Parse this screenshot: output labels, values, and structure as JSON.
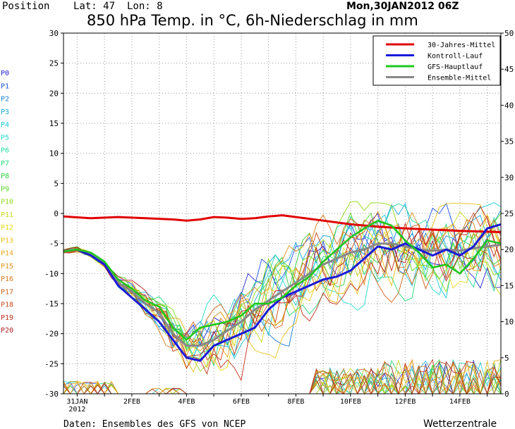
{
  "header": {
    "position_label": "Position",
    "lat_label": "Lat: 47",
    "lon_label": "Lon: 8",
    "date_label": "Mon,30JAN2012 06Z"
  },
  "footer": {
    "source_label": "Daten: Ensembles des GFS von NCEP",
    "brand_label": "Wetterzentrale"
  },
  "colors": {
    "mittel": "#e00000",
    "kontroll": "#1a1ad8",
    "gfs": "#1ec81e",
    "ensemble": "#888888"
  },
  "chart_data": {
    "type": "line",
    "title": "850 hPa Temp. in °C, 6h-Niederschlag in mm",
    "x_ticks": [
      {
        "x": 0.0,
        "label": "31JAN",
        "label2": "2012"
      },
      {
        "x": 2,
        "label": "2FEB"
      },
      {
        "x": 4,
        "label": "4FEB"
      },
      {
        "x": 6,
        "label": "6FEB"
      },
      {
        "x": 8,
        "label": "8FEB"
      },
      {
        "x": 10,
        "label": "10FEB"
      },
      {
        "x": 12,
        "label": "12FEB"
      },
      {
        "x": 14,
        "label": "14FEB"
      }
    ],
    "xlim": [
      -0.5,
      15.5
    ],
    "ylim_left": [
      -30,
      30
    ],
    "ylim_right": [
      0,
      50
    ],
    "y_ticks_left": [
      -30,
      -25,
      -20,
      -15,
      -10,
      -5,
      0,
      5,
      10,
      15,
      20,
      25,
      30
    ],
    "y_ticks_right": [
      0,
      5,
      10,
      15,
      20,
      25,
      30,
      35,
      40,
      45,
      50
    ],
    "grid": true,
    "legend_position": "top-right",
    "legend": [
      {
        "label": "30-Jahres-Mittel",
        "color": "#e00000"
      },
      {
        "label": "Kontroll-Lauf",
        "color": "#1a1ad8"
      },
      {
        "label": "GFS-Hauptlauf",
        "color": "#1ec81e"
      },
      {
        "label": "Ensemble-Mittel",
        "color": "#888888"
      }
    ],
    "members": [
      {
        "name": "P0",
        "color": "#2020d0"
      },
      {
        "name": "P1",
        "color": "#1a50e0"
      },
      {
        "name": "P2",
        "color": "#1a7ee0"
      },
      {
        "name": "P3",
        "color": "#18a8e0"
      },
      {
        "name": "P4",
        "color": "#18c8d8"
      },
      {
        "name": "P5",
        "color": "#20d8c8"
      },
      {
        "name": "P6",
        "color": "#20d8a0"
      },
      {
        "name": "P7",
        "color": "#20d878"
      },
      {
        "name": "P8",
        "color": "#30d040"
      },
      {
        "name": "P9",
        "color": "#58d820"
      },
      {
        "name": "P10",
        "color": "#90d818"
      },
      {
        "name": "P11",
        "color": "#c8d818"
      },
      {
        "name": "P12",
        "color": "#e8d818"
      },
      {
        "name": "P13",
        "color": "#e8c018"
      },
      {
        "name": "P14",
        "color": "#e8a818"
      },
      {
        "name": "P15",
        "color": "#e09018"
      },
      {
        "name": "P16",
        "color": "#d87818"
      },
      {
        "name": "P17",
        "color": "#d06018"
      },
      {
        "name": "P18",
        "color": "#c84818"
      },
      {
        "name": "P19",
        "color": "#c03018"
      },
      {
        "name": "P20",
        "color": "#b02020"
      }
    ],
    "series": [
      {
        "name": "30-Jahres-Mittel",
        "color": "#e00000",
        "x": [
          -0.5,
          0.5,
          1.5,
          2.5,
          3.5,
          4.0,
          4.5,
          5.0,
          5.5,
          6.0,
          6.5,
          7.0,
          7.5,
          8.0,
          9.0,
          10.0,
          11.0,
          12.0,
          13.0,
          14.0,
          15.5
        ],
        "y": [
          -0.5,
          -0.8,
          -0.6,
          -0.8,
          -1.0,
          -1.2,
          -1.0,
          -0.6,
          -0.7,
          -0.9,
          -0.8,
          -0.5,
          -0.3,
          -0.6,
          -1.2,
          -1.8,
          -2.2,
          -2.5,
          -2.7,
          -2.9,
          -3.1
        ]
      },
      {
        "name": "Kontroll-Lauf",
        "color": "#1a1ad8",
        "x": [
          -0.5,
          0.0,
          0.5,
          1.0,
          1.5,
          2.0,
          2.5,
          3.0,
          3.5,
          4.0,
          4.5,
          5.0,
          5.5,
          6.0,
          6.5,
          7.0,
          7.5,
          8.0,
          8.5,
          9.0,
          9.5,
          10.0,
          10.5,
          11.0,
          11.5,
          12.0,
          12.5,
          13.0,
          13.5,
          14.0,
          14.5,
          15.0,
          15.5
        ],
        "y": [
          -6.3,
          -6.0,
          -7.0,
          -8.5,
          -12.0,
          -14.0,
          -16.0,
          -18.0,
          -21.0,
          -24.0,
          -24.5,
          -22.0,
          -21.0,
          -20.0,
          -19.0,
          -16.0,
          -14.0,
          -13.0,
          -12.0,
          -11.0,
          -10.5,
          -9.5,
          -7.5,
          -5.5,
          -6.0,
          -5.0,
          -6.0,
          -7.0,
          -6.0,
          -7.0,
          -5.5,
          -2.5,
          -1.8
        ]
      },
      {
        "name": "GFS-Hauptlauf",
        "color": "#1ec81e",
        "x": [
          -0.5,
          0.0,
          0.5,
          1.0,
          1.5,
          2.0,
          2.5,
          3.0,
          3.5,
          4.0,
          4.5,
          5.0,
          5.5,
          6.0,
          6.5,
          7.0,
          7.5,
          8.0,
          8.5,
          9.0,
          9.5,
          10.0,
          10.5,
          11.0,
          11.5,
          12.0,
          12.5,
          13.0,
          13.5,
          14.0,
          14.5,
          15.0,
          15.5
        ],
        "y": [
          -6.3,
          -6.0,
          -6.5,
          -8.0,
          -11.0,
          -12.5,
          -14.5,
          -15.5,
          -19.0,
          -21.0,
          -19.0,
          -18.5,
          -18.0,
          -17.0,
          -15.0,
          -15.0,
          -14.0,
          -12.0,
          -10.5,
          -8.0,
          -6.0,
          -4.0,
          -2.5,
          -1.2,
          -2.0,
          -4.5,
          -6.5,
          -9.0,
          -8.5,
          -10.0,
          -7.5,
          -4.5,
          -5.0
        ]
      },
      {
        "name": "Ensemble-Mittel",
        "color": "#888888",
        "x": [
          -0.5,
          0.0,
          0.5,
          1.0,
          1.5,
          2.0,
          2.5,
          3.0,
          3.5,
          4.0,
          4.5,
          5.0,
          5.5,
          6.0,
          6.5,
          7.0,
          7.5,
          8.0,
          8.5,
          9.0,
          9.5,
          10.0,
          10.5,
          11.0,
          11.5,
          12.0,
          12.5,
          13.0,
          13.5,
          14.0,
          14.5,
          15.0,
          15.5
        ],
        "y": [
          -6.3,
          -6.0,
          -6.8,
          -8.3,
          -11.5,
          -13.0,
          -15.0,
          -16.5,
          -20.0,
          -22.0,
          -22.0,
          -21.0,
          -19.5,
          -18.0,
          -16.0,
          -14.5,
          -13.0,
          -11.5,
          -10.0,
          -8.5,
          -7.5,
          -6.5,
          -6.0,
          -5.0,
          -5.0,
          -5.5,
          -6.0,
          -6.2,
          -6.0,
          -6.2,
          -5.8,
          -5.5,
          -5.2
        ]
      }
    ]
  }
}
